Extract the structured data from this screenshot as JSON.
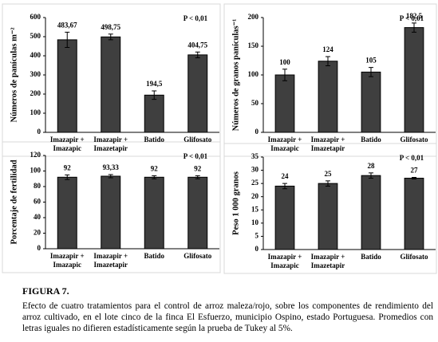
{
  "chart_data": [
    {
      "type": "bar",
      "ylabel": "Números de panículas m⁻²",
      "annotation": "P < 0,01",
      "categories": [
        "Imazapir + Imazapic",
        "Imazapir + Imazetapir",
        "Batido",
        "Glifosato"
      ],
      "values": [
        483.67,
        498.75,
        194.5,
        404.75
      ],
      "value_labels": [
        "483,67",
        "498,75",
        "194,5",
        "404,75"
      ],
      "errors": [
        40,
        15,
        22,
        15
      ],
      "color": "#3f3f3f",
      "ylim": [
        0,
        600
      ],
      "yticks": [
        0,
        100,
        200,
        300,
        400,
        500,
        600
      ]
    },
    {
      "type": "bar",
      "ylabel": "Números de granos panículas⁻¹",
      "annotation": "P < 0,01",
      "categories": [
        "Imazapir + Imazapic",
        "Imazapir + Imazetapir",
        "Batido",
        "Glifosato"
      ],
      "values": [
        100,
        124,
        105,
        182.5
      ],
      "value_labels": [
        "100",
        "124",
        "105",
        "182,5"
      ],
      "errors": [
        10,
        8,
        8,
        8
      ],
      "color": "#3f3f3f",
      "ylim": [
        0,
        200
      ],
      "yticks": [
        0,
        50,
        100,
        150,
        200
      ]
    },
    {
      "type": "bar",
      "ylabel": "Porcentaje de fertilidad",
      "annotation": "P < 0,01",
      "categories": [
        "Imazapir + Imazapic",
        "Imazapir + Imazetapir",
        "Batido",
        "Glifosato"
      ],
      "values": [
        92,
        93.33,
        92,
        92
      ],
      "value_labels": [
        "92",
        "93,33",
        "92",
        "92"
      ],
      "errors": [
        3,
        2,
        2,
        2
      ],
      "color": "#3f3f3f",
      "ylim": [
        0,
        120
      ],
      "yticks": [
        0,
        20,
        40,
        60,
        80,
        100,
        120
      ]
    },
    {
      "type": "bar",
      "ylabel": "Peso 1 000 granos",
      "annotation": "P < 0,01",
      "categories": [
        "Imazapir + Imazapic",
        "Imazapir + Imazetapir",
        "Batido",
        "Glifosato"
      ],
      "values": [
        24,
        25,
        28,
        27
      ],
      "value_labels": [
        "24",
        "25",
        "28",
        "27"
      ],
      "errors": [
        1,
        1,
        1,
        0.3
      ],
      "color": "#3f3f3f",
      "ylim": [
        0,
        35
      ],
      "yticks": [
        0,
        5,
        10,
        15,
        20,
        25,
        30,
        35
      ]
    }
  ],
  "figure_label": "FIGURA 7.",
  "caption": "Efecto de cuatro tratamientos para el control de arroz maleza/rojo, sobre los componentes de rendimiento del arroz cultivado, en el lote cinco de la finca El Esfuerzo, municipio Ospino, estado Portuguesa. Promedios con letras iguales no difieren estadísticamente según la prueba de Tukey al 5%."
}
